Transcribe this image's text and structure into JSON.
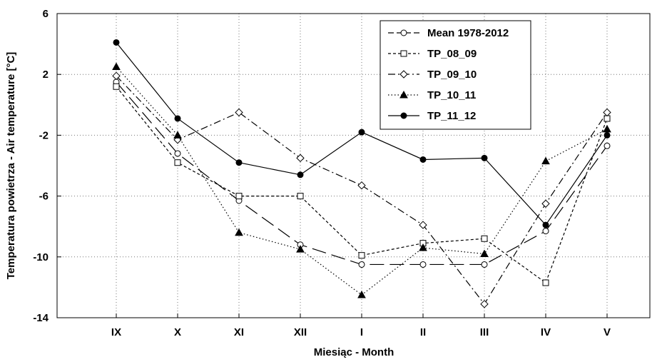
{
  "chart_data": {
    "type": "line",
    "title": "",
    "xlabel": "Miesiąc - Month",
    "ylabel": "Temperatura powietrza - Air temperature [°C]",
    "ylim": [
      -14,
      6
    ],
    "yticks": [
      "6",
      "2",
      "-2",
      "-6",
      "-10",
      "-14"
    ],
    "categories": [
      "IX",
      "X",
      "XI",
      "XII",
      "I",
      "II",
      "III",
      "IV",
      "V"
    ],
    "grid": true,
    "legend_position": "top-right",
    "series": [
      {
        "name": "Mean 1978-2012",
        "values": [
          1.5,
          -3.2,
          -6.3,
          -9.2,
          -10.5,
          -10.5,
          -10.5,
          -8.3,
          -2.7
        ],
        "marker": "circle-open",
        "dash": "long-dash"
      },
      {
        "name": "TP_08_09",
        "values": [
          1.2,
          -3.8,
          -6.0,
          -6.0,
          -9.9,
          -9.1,
          -8.8,
          -11.7,
          -0.9
        ],
        "marker": "square-open",
        "dash": "short-dash"
      },
      {
        "name": "TP_09_10",
        "values": [
          1.9,
          -2.3,
          -0.5,
          -3.5,
          -5.3,
          -7.9,
          -13.1,
          -6.5,
          -0.5
        ],
        "marker": "diamond-open",
        "dash": "dash-dot"
      },
      {
        "name": "TP_10_11",
        "values": [
          2.5,
          -2.0,
          -8.4,
          -9.5,
          -12.5,
          -9.4,
          -9.8,
          -3.7,
          -1.6
        ],
        "marker": "triangle-filled",
        "dash": "dotted"
      },
      {
        "name": "TP_11_12",
        "values": [
          4.1,
          -0.9,
          -3.8,
          -4.6,
          -1.8,
          -3.6,
          -3.5,
          -7.9,
          -2.0
        ],
        "marker": "circle-filled",
        "dash": "solid"
      }
    ]
  }
}
